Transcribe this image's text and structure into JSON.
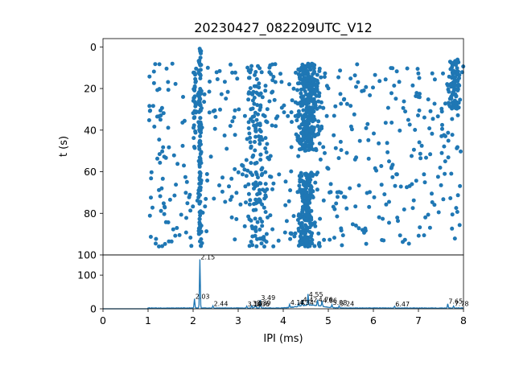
{
  "chart_data": [
    {
      "type": "scatter",
      "title": "20230427_082209UTC_V12",
      "xlabel": "",
      "ylabel": "t (s)",
      "xlim": [
        0,
        8
      ],
      "ylim": [
        100,
        -4
      ],
      "y_inverted": true,
      "yticks": [
        "0",
        "20",
        "40",
        "60",
        "80",
        "100"
      ],
      "color": "#1f77b4",
      "point_density_note_free": true,
      "time_range": [
        8,
        96
      ],
      "clusters": [
        {
          "x_center": 2.15,
          "x_spread": 0.06,
          "t_from": 0,
          "t_to": 96,
          "count": 120
        },
        {
          "x_center": 2.03,
          "x_spread": 0.05,
          "t_from": 10,
          "t_to": 50,
          "count": 30
        },
        {
          "x_center": 4.55,
          "x_spread": 0.35,
          "t_from": 8,
          "t_to": 50,
          "count": 340
        },
        {
          "x_center": 4.5,
          "x_spread": 0.25,
          "t_from": 60,
          "t_to": 96,
          "count": 200
        },
        {
          "x_center": 3.45,
          "x_spread": 0.35,
          "t_from": 8,
          "t_to": 96,
          "count": 140
        },
        {
          "x_center": 7.8,
          "x_spread": 0.2,
          "t_from": 6,
          "t_to": 30,
          "count": 90
        },
        {
          "x_center": 4.5,
          "x_spread": 3.4,
          "t_from": 8,
          "t_to": 96,
          "count": 520
        }
      ]
    },
    {
      "type": "line",
      "xlabel": "IPI (ms)",
      "ylabel": "",
      "xlim": [
        0,
        8
      ],
      "ylim": [
        0,
        160
      ],
      "xticks": [
        "0",
        "1",
        "2",
        "3",
        "4",
        "5",
        "6",
        "7",
        "8"
      ],
      "yticks": [
        "0",
        "100"
      ],
      "color": "#1f77b4",
      "peaks": [
        {
          "x": 2.15,
          "y": 145,
          "label": "2.15"
        },
        {
          "x": 2.03,
          "y": 28,
          "label": "2.03"
        },
        {
          "x": 2.44,
          "y": 6,
          "label": "2.44"
        },
        {
          "x": 3.19,
          "y": 5,
          "label": "3.19"
        },
        {
          "x": 3.3,
          "y": 7,
          "label": "3.3"
        },
        {
          "x": 3.39,
          "y": 8,
          "label": "3.39"
        },
        {
          "x": 3.36,
          "y": 5,
          "label": "3.36"
        },
        {
          "x": 3.49,
          "y": 24,
          "label": "3.49"
        },
        {
          "x": 4.14,
          "y": 9,
          "label": "4.14"
        },
        {
          "x": 4.34,
          "y": 10,
          "label": "4.34"
        },
        {
          "x": 4.42,
          "y": 18,
          "label": "4.42"
        },
        {
          "x": 4.55,
          "y": 33,
          "label": "4.55"
        },
        {
          "x": 4.76,
          "y": 18,
          "label": "4.76"
        },
        {
          "x": 4.86,
          "y": 16,
          "label": "4.86"
        },
        {
          "x": 5.08,
          "y": 9,
          "label": "5.08"
        },
        {
          "x": 5.24,
          "y": 6,
          "label": "5.24"
        },
        {
          "x": 6.47,
          "y": 5,
          "label": "6.47"
        },
        {
          "x": 7.65,
          "y": 13,
          "label": "7.65"
        },
        {
          "x": 7.78,
          "y": 6,
          "label": "7.78"
        }
      ]
    }
  ]
}
